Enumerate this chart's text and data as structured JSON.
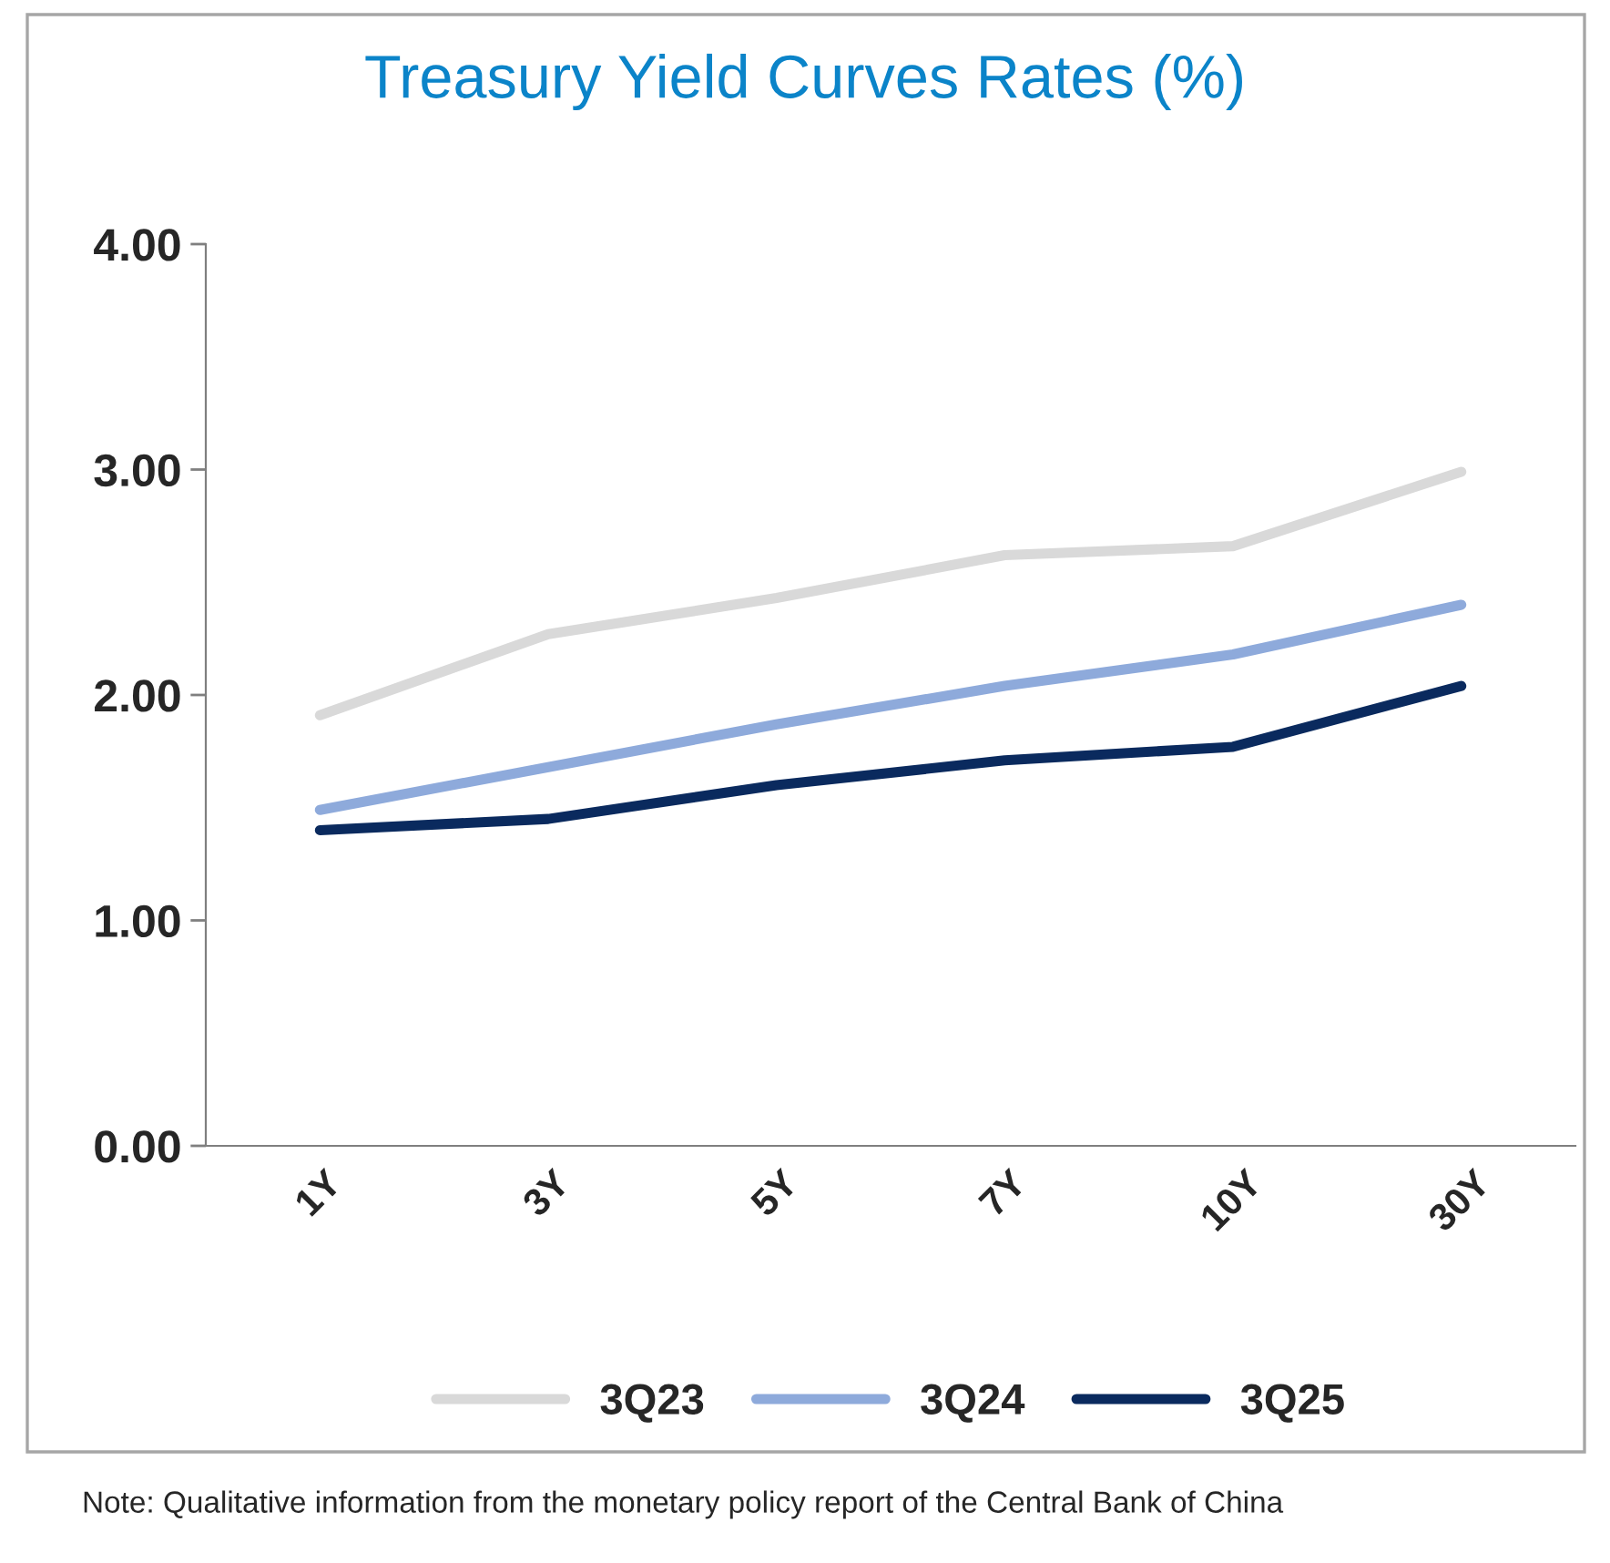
{
  "chart_data": {
    "type": "line",
    "title": "Treasury Yield Curves Rates (%)",
    "categories": [
      "1Y",
      "3Y",
      "5Y",
      "7Y",
      "10Y",
      "30Y"
    ],
    "series": [
      {
        "name": "3Q23",
        "color": "#d9d9d9",
        "values": [
          1.91,
          2.27,
          2.43,
          2.62,
          2.66,
          2.99
        ]
      },
      {
        "name": "3Q24",
        "color": "#8eaadb",
        "values": [
          1.49,
          1.68,
          1.87,
          2.04,
          2.18,
          2.4
        ]
      },
      {
        "name": "3Q25",
        "color": "#0a2a5e",
        "values": [
          1.4,
          1.45,
          1.6,
          1.71,
          1.77,
          2.04
        ]
      }
    ],
    "ylim": [
      0,
      4
    ],
    "yticks": [
      {
        "value": 0,
        "label": "0.00"
      },
      {
        "value": 1,
        "label": "1.00"
      },
      {
        "value": 2,
        "label": "2.00"
      },
      {
        "value": 3,
        "label": "3.00"
      },
      {
        "value": 4,
        "label": "4.00"
      }
    ],
    "grid": false,
    "legend": "bottom",
    "marker": "none",
    "line_style": "solid",
    "annotations": [
      "Note: Qualitative information from the monetary policy report of the Central Bank of China"
    ]
  }
}
